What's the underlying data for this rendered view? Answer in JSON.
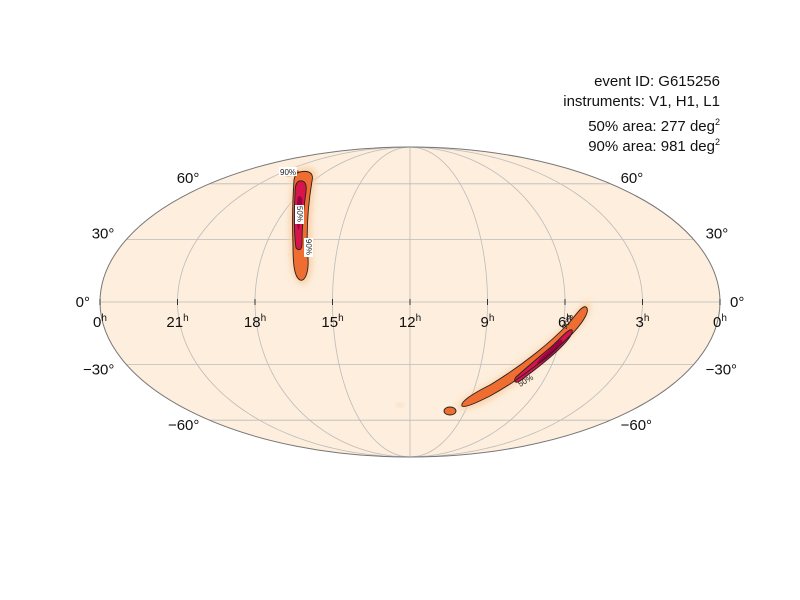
{
  "info": {
    "event_id": "event ID: G615256",
    "instruments": "instruments: V1, H1, L1",
    "area50_text": "50% area: 277 deg",
    "area90_text": "90% area: 981 deg",
    "area_unit_sup": "2"
  },
  "map": {
    "projection": "mollweide",
    "ra_labels": [
      {
        "hours": 0,
        "text": "0",
        "sup": "h",
        "side": "left"
      },
      {
        "hours": 21,
        "text": "21",
        "sup": "h"
      },
      {
        "hours": 18,
        "text": "18",
        "sup": "h"
      },
      {
        "hours": 15,
        "text": "15",
        "sup": "h"
      },
      {
        "hours": 12,
        "text": "12",
        "sup": "h"
      },
      {
        "hours": 9,
        "text": "9",
        "sup": "h"
      },
      {
        "hours": 6,
        "text": "6",
        "sup": "h"
      },
      {
        "hours": 3,
        "text": "3",
        "sup": "h"
      },
      {
        "hours": 0,
        "text": "0",
        "sup": "h",
        "side": "right"
      }
    ],
    "dec_labels": [
      {
        "dec": 60,
        "text": "60°"
      },
      {
        "dec": 30,
        "text": "30°"
      },
      {
        "dec": 0,
        "text": "0°"
      },
      {
        "dec": -30,
        "text": "−30°"
      },
      {
        "dec": -60,
        "text": "−60°"
      }
    ],
    "contour_labels": [
      {
        "text": "90%"
      },
      {
        "text": "50%"
      },
      {
        "text": "90%"
      },
      {
        "text": "90%"
      },
      {
        "text": "50%"
      }
    ],
    "colors": {
      "background": "#fdeedd",
      "grid": "#bbbbbb",
      "outline": "#777777",
      "prob_low": "#fbd0a8",
      "prob_mid": "#f06d32",
      "prob_high": "#d8154a",
      "prob_peak": "#9e0142",
      "contour": "#222222"
    }
  }
}
